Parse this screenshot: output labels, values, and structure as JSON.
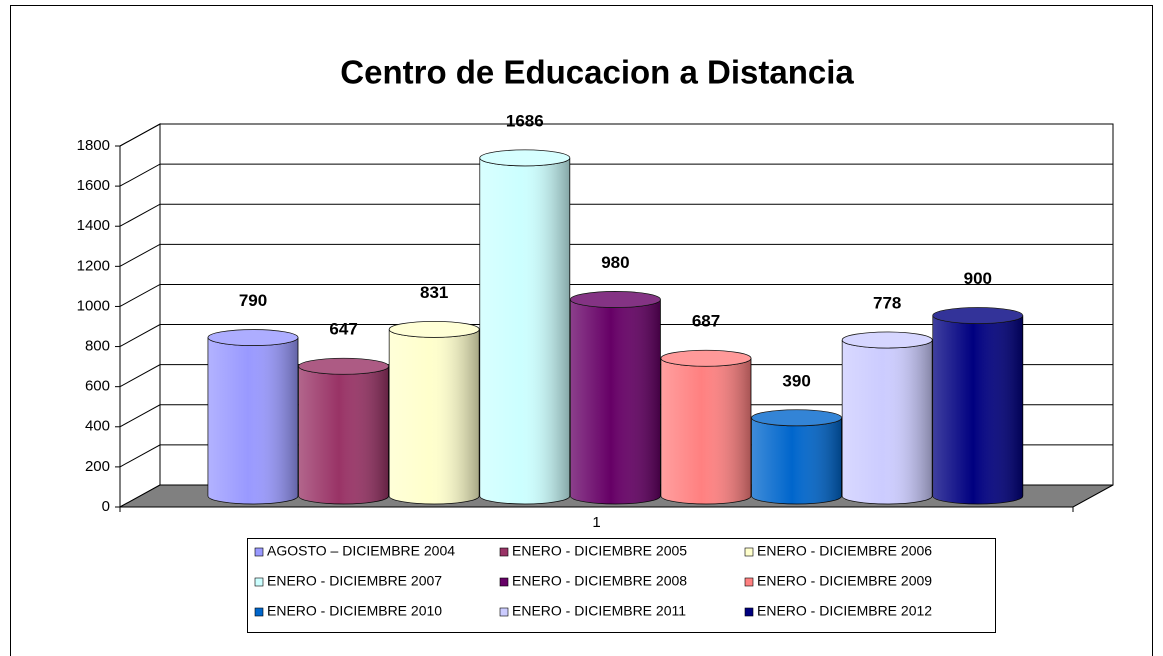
{
  "chart_data": {
    "type": "bar",
    "title": "Centro de Educacion a Distancia",
    "categories": [
      "1"
    ],
    "series": [
      {
        "name": "AGOSTO – DICIEMBRE 2004",
        "color": "#9999ff",
        "values": [
          790
        ]
      },
      {
        "name": "ENERO - DICIEMBRE 2005",
        "color": "#993366",
        "values": [
          647
        ]
      },
      {
        "name": "ENERO - DICIEMBRE 2006",
        "color": "#ffffcc",
        "values": [
          831
        ]
      },
      {
        "name": "ENERO - DICIEMBRE 2007",
        "color": "#ccffff",
        "values": [
          1686
        ]
      },
      {
        "name": "ENERO - DICIEMBRE 2008",
        "color": "#660066",
        "values": [
          980
        ]
      },
      {
        "name": "ENERO - DICIEMBRE 2009",
        "color": "#ff8080",
        "values": [
          687
        ]
      },
      {
        "name": "ENERO - DICIEMBRE 2010",
        "color": "#0066cc",
        "values": [
          390
        ]
      },
      {
        "name": "ENERO - DICIEMBRE 2011",
        "color": "#ccccff",
        "values": [
          778
        ]
      },
      {
        "name": "ENERO - DICIEMBRE 2012",
        "color": "#000080",
        "values": [
          900
        ]
      }
    ],
    "ylim": [
      0,
      1800
    ],
    "yticks": [
      0,
      200,
      400,
      600,
      800,
      1000,
      1200,
      1400,
      1600,
      1800
    ],
    "grid": true,
    "legend": "bottom"
  }
}
